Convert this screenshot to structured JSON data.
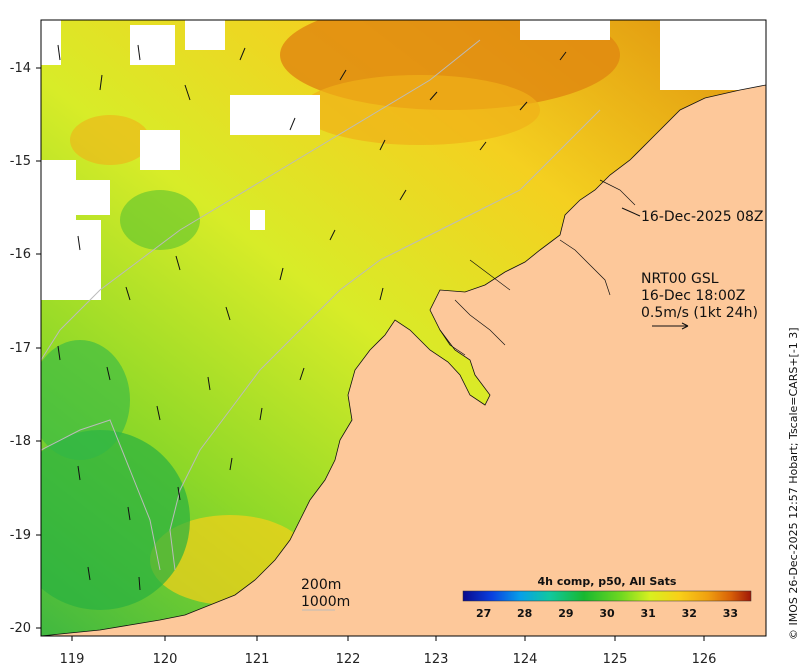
{
  "map": {
    "lon_ticks": [
      "119",
      "120",
      "121",
      "122",
      "123",
      "124",
      "125",
      "126"
    ],
    "lat_ticks": [
      "-14",
      "-15",
      "-16",
      "-17",
      "-18",
      "-19",
      "-20"
    ],
    "lon_range": [
      118.6,
      126.7
    ],
    "lat_range": [
      -20.1,
      -13.5
    ]
  },
  "annotations": {
    "date_label": "16-Dec-2025 08Z",
    "current_title": "NRT00 GSL",
    "current_time": "16-Dec 18:00Z",
    "current_scale": "0.5m/s (1kt 24h)",
    "isobath_1": "200m",
    "isobath_2": "1000m"
  },
  "colorbar": {
    "title": "4h comp, p50, All Sats",
    "ticks": [
      "27",
      "28",
      "29",
      "30",
      "31",
      "32",
      "33"
    ],
    "range": [
      26.5,
      33.5
    ],
    "colors": [
      "#0a0a8c",
      "#0a40e0",
      "#08a0e8",
      "#10c8a0",
      "#18b830",
      "#70d820",
      "#d8f020",
      "#f8d018",
      "#f0a010",
      "#d86008",
      "#a01808"
    ]
  },
  "credit": "© IMOS 26-Dec-2025 12:57 Hobart; Tscale=CARS+[-1 3]",
  "colors": {
    "land": "#fdc89a",
    "frame": "#000000"
  }
}
